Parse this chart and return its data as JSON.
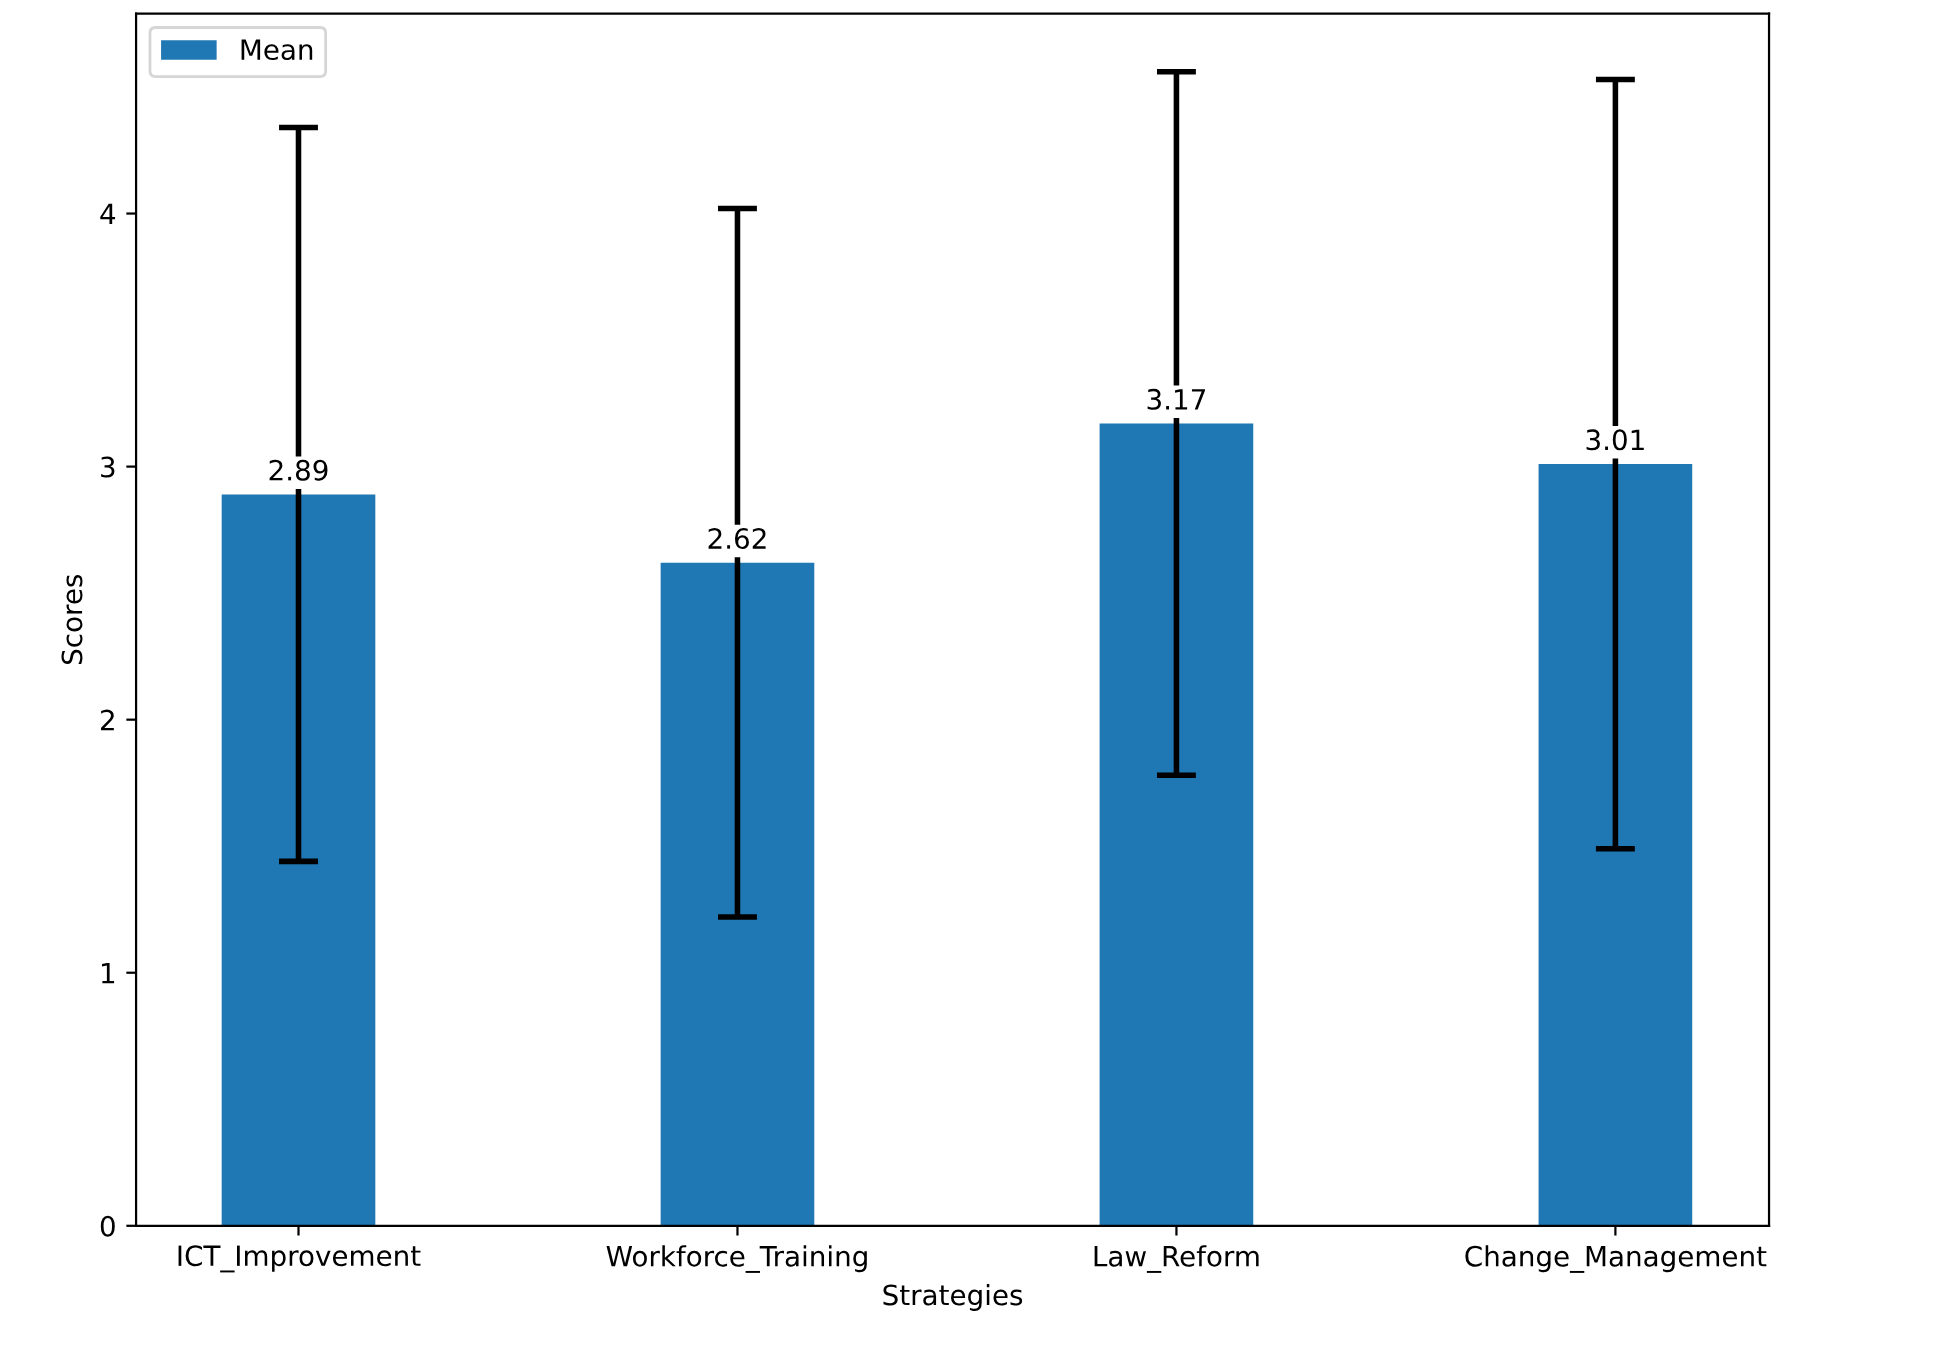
{
  "chart_data": {
    "type": "bar",
    "xlabel": "Strategies",
    "ylabel": "Scores",
    "categories": [
      "ICT_Improvement",
      "Workforce_Training",
      "Law_Reform",
      "Change_Management"
    ],
    "series": [
      {
        "name": "Mean",
        "color": "#1f77b4",
        "values": [
          2.89,
          2.62,
          3.17,
          3.01
        ],
        "errors": [
          1.45,
          1.4,
          1.39,
          1.52
        ]
      }
    ],
    "data_labels": true,
    "ylim": [
      0,
      4.79
    ],
    "yticks": [
      0,
      1,
      2,
      3,
      4
    ],
    "legend": "top left",
    "grid": false
  }
}
